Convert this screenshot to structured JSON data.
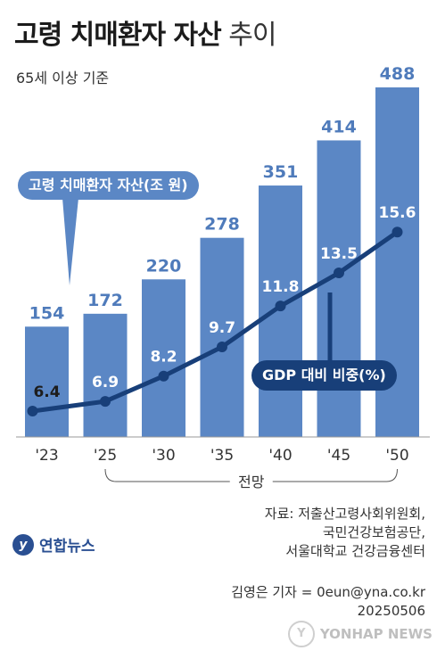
{
  "title_bold": "고령 치매환자 자산",
  "title_light": "추이",
  "subtitle": "65세 이상 기준",
  "callout_assets": "고령 치매환자 자산(조 원)",
  "callout_gdp": "GDP 대비 비중(%)",
  "forecast_label": "전망",
  "source_lines": [
    "자료: 저출산고령사회위원회,",
    "국민건강보험공단,",
    "서울대학교 건강금융센터"
  ],
  "byline": "김영은 기자 = 0eun@yna.co.kr",
  "date": "20250506",
  "logo_text": "연합뉴스",
  "watermark_text": "YONHAP NEWS",
  "colors": {
    "bar": "#5b87c5",
    "line": "#183f79",
    "callout_line": "#183f79"
  },
  "chart_data": {
    "type": "bar",
    "categories": [
      "'23",
      "'25",
      "'30",
      "'35",
      "'40",
      "'45",
      "'50"
    ],
    "series": [
      {
        "values": [
          154,
          172,
          220,
          278,
          351,
          414,
          488
        ]
      },
      {
        "type": "line",
        "values": [
          6.4,
          6.9,
          8.2,
          9.7,
          11.8,
          13.5,
          15.6
        ]
      }
    ]
  }
}
